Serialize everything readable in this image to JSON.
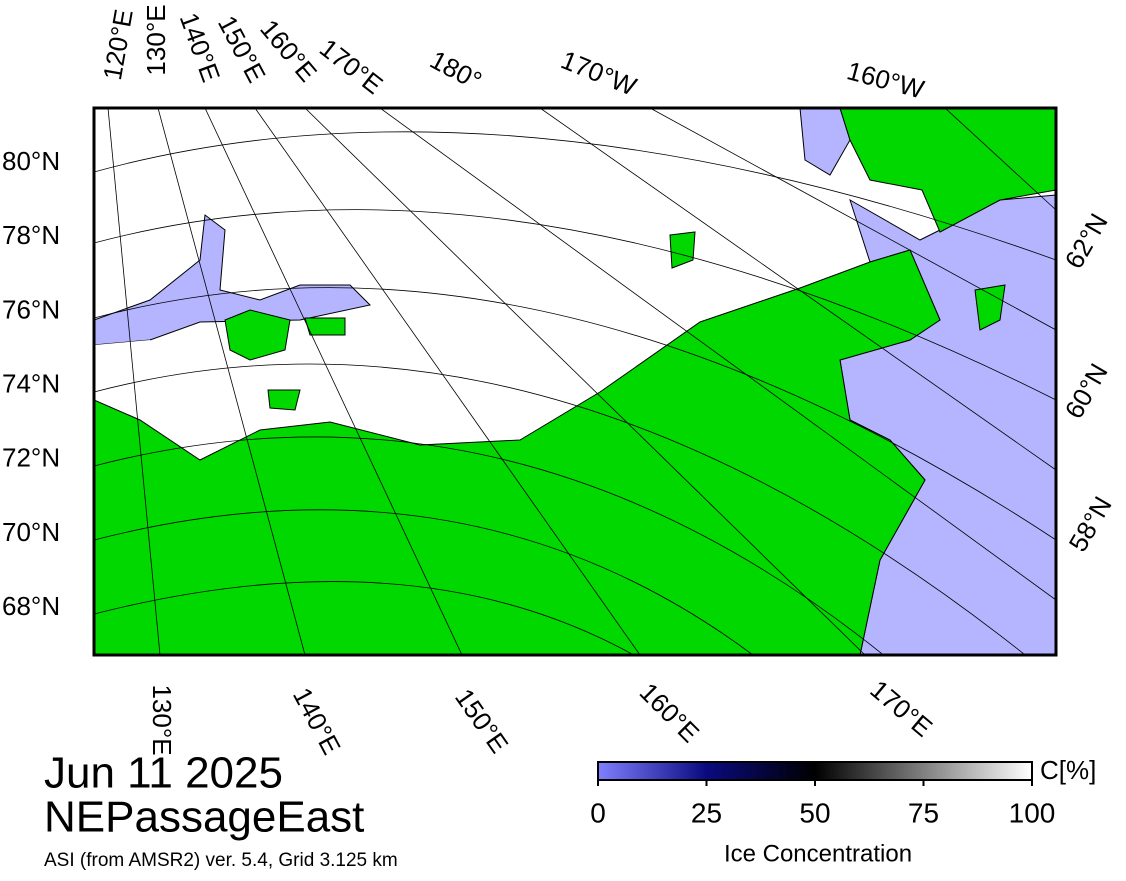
{
  "map": {
    "top_labels": [
      "120°E",
      "130°E",
      "140°E",
      "150°E",
      "160°E",
      "170°E",
      "180°",
      "170°W",
      "160°W"
    ],
    "left_labels": [
      "80°N",
      "78°N",
      "76°N",
      "74°N",
      "72°N",
      "70°N",
      "68°N"
    ],
    "right_labels": [
      "62°N",
      "60°N",
      "58°N"
    ],
    "bottom_labels": [
      "130°E",
      "140°E",
      "150°E",
      "160°E",
      "170°E"
    ]
  },
  "title": {
    "date": "Jun 11 2025",
    "region": "NEPassageEast",
    "source": "ASI (from AMSR2) ver. 5.4,  Grid 3.125 km"
  },
  "colorbar": {
    "unit": "C[%]",
    "label": "Ice Concentration",
    "ticks": [
      0,
      25,
      50,
      75,
      100
    ]
  }
}
